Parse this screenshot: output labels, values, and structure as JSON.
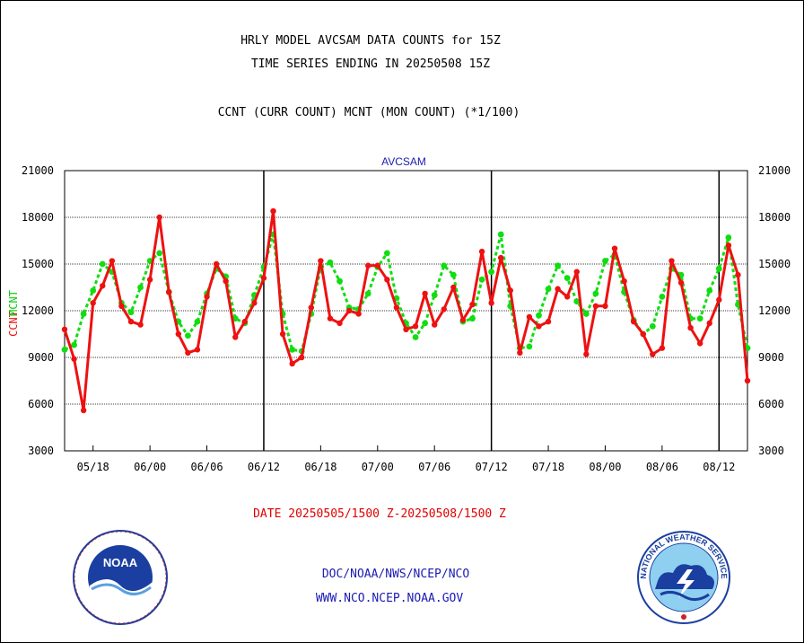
{
  "header": {
    "title_line1": "HRLY MODEL AVCSAM DATA COUNTS for 15Z",
    "title_line2": "TIME SERIES ENDING IN 20250508 15Z",
    "subtitle": "CCNT (CURR COUNT) MCNT (MON COUNT) (*1/100)"
  },
  "footer": {
    "date_range": "DATE 20250505/1500 Z-20250508/1500 Z",
    "org": "DOC/NOAA/NWS/NCEP/NCO",
    "site": "WWW.NCO.NCEP.NOAA.GOV"
  },
  "logos": {
    "left_name": "noaa-logo-icon",
    "left_text": "NOAA",
    "right_name": "national-weather-service-logo-icon",
    "right_text": "NATIONAL WEATHER SERVICE"
  },
  "colors": {
    "ccnt": "#ee1111",
    "mcnt": "#11dd11",
    "frame_label": "#1b1bb3",
    "grid": "#000000"
  },
  "chart_data": {
    "type": "line",
    "title": "AVCSAM",
    "ylabel_ccnt": "CCNT",
    "ylabel_mcnt": "MCNT",
    "ylim": [
      3000,
      21000
    ],
    "yticks": [
      "3000",
      "6000",
      "9000",
      "12000",
      "15000",
      "18000",
      "21000"
    ],
    "xticks": [
      "05/18",
      "06/00",
      "06/06",
      "06/12",
      "06/18",
      "07/00",
      "07/06",
      "07/12",
      "07/18",
      "08/00",
      "08/06",
      "08/12"
    ],
    "day_separators": [
      "06/12",
      "07/12",
      "08/12"
    ],
    "grid": "horizontal",
    "series": [
      {
        "name": "CCNT",
        "values": [
          10800,
          8900,
          5600,
          12500,
          13600,
          15200,
          12300,
          11300,
          11100,
          14000,
          18000,
          13200,
          10500,
          9300,
          9500,
          12900,
          15000,
          13900,
          10300,
          11300,
          12500,
          14100,
          18400,
          10500,
          8600,
          9000,
          12200,
          15200,
          11500,
          11200,
          12000,
          11800,
          14900,
          14900,
          14000,
          12200,
          10800,
          11000,
          13100,
          11100,
          12100,
          13500,
          11400,
          12400,
          15800,
          12500,
          15400,
          13300,
          9300,
          11600,
          11000,
          11300,
          13400,
          12900,
          14500,
          9200,
          12300,
          12300,
          16000,
          13900,
          11300,
          10500,
          9200,
          9600,
          15200,
          13800,
          10900,
          9900,
          11200,
          12700,
          16200,
          14300,
          7500
        ]
      },
      {
        "name": "MCNT",
        "values": [
          9500,
          9800,
          11800,
          13300,
          15000,
          14500,
          12500,
          11900,
          13500,
          15200,
          15700,
          13200,
          11300,
          10400,
          11300,
          13100,
          14700,
          14200,
          11500,
          11200,
          13000,
          14800,
          16900,
          11800,
          9500,
          9400,
          11800,
          14800,
          15100,
          13900,
          12200,
          12100,
          13100,
          14800,
          15700,
          12800,
          11200,
          10300,
          11200,
          13000,
          14900,
          14300,
          11300,
          11500,
          14000,
          14500,
          16900,
          12300,
          9600,
          9700,
          11700,
          13400,
          14900,
          14100,
          12600,
          11800,
          13100,
          15200,
          15600,
          13200,
          11400,
          10500,
          11000,
          12900,
          14700,
          14300,
          11500,
          11500,
          13300,
          14700,
          16700,
          12400,
          9600
        ]
      }
    ]
  }
}
